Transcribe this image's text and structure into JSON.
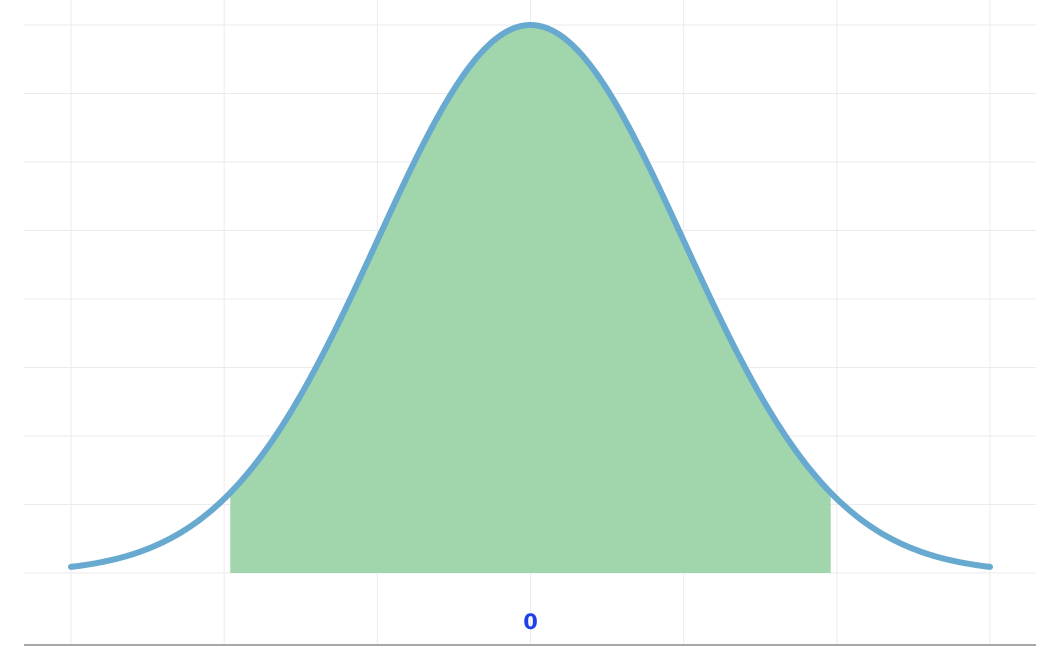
{
  "chart_data": {
    "type": "area",
    "title": "",
    "xlabel": "",
    "ylabel": "",
    "distribution": "standard normal",
    "xlim": [
      -3,
      3
    ],
    "ylim": [
      0,
      0.4
    ],
    "shaded_range": [
      -1.96,
      1.96
    ],
    "x_tick_labels": [
      {
        "value": 0,
        "label": "0"
      }
    ],
    "grid": true,
    "colors": {
      "curve": "#67a9cf",
      "fill": "#99d2a6",
      "tick_label": "#1f3fe8",
      "grid": "#ebebeb",
      "axis": "#8c8c8c"
    }
  }
}
